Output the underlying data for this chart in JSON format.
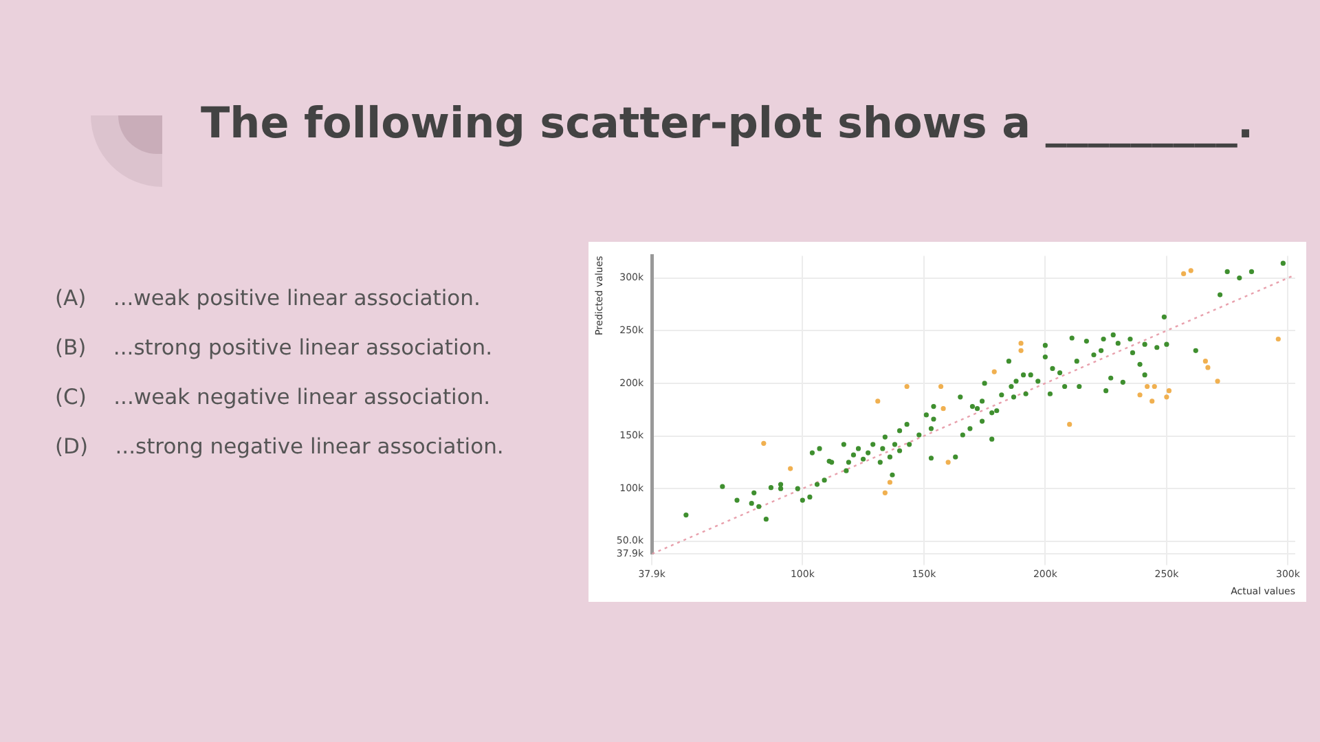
{
  "chart_data": {
    "type": "scatter",
    "title": "The following scatter-plot shows a _________.",
    "annotations": [
      "(A)    ...weak positive linear association.",
      "(B)    ...strong positive linear association.",
      "(C)    ...weak negative linear association.",
      "(D)    ...strong negative linear association."
    ],
    "xlabel": "Actual values",
    "ylabel": "Predicted values",
    "xlim": [
      37.9,
      303
    ],
    "ylim": [
      37.9,
      321
    ],
    "xticks": [
      {
        "value": 37.9,
        "label": "37.9k"
      },
      {
        "value": 100,
        "label": "100k"
      },
      {
        "value": 150,
        "label": "150k"
      },
      {
        "value": 200,
        "label": "200k"
      },
      {
        "value": 250,
        "label": "250k"
      },
      {
        "value": 300,
        "label": "300k"
      }
    ],
    "yticks": [
      {
        "value": 37.9,
        "label": "37.9k"
      },
      {
        "value": 50,
        "label": "50.0k"
      },
      {
        "value": 100,
        "label": "100k"
      },
      {
        "value": 150,
        "label": "150k"
      },
      {
        "value": 200,
        "label": "200k"
      },
      {
        "value": 250,
        "label": "250k"
      },
      {
        "value": 300,
        "label": "300k"
      }
    ],
    "grid": true,
    "legend": false,
    "marker": "circle",
    "series": [
      {
        "type": "line",
        "color": "#e8a0ac",
        "line_style": "dotted",
        "marker": "none",
        "x": [
          38,
          303
        ],
        "values": [
          38,
          303
        ]
      },
      {
        "color": "#3f8f2f",
        "x": [
          52,
          67,
          73,
          80,
          79,
          82,
          85,
          87,
          91,
          91,
          98,
          100,
          103,
          104,
          107,
          106,
          109,
          111,
          112,
          117,
          118,
          119,
          121,
          123,
          125,
          127,
          129,
          132,
          133,
          134,
          137,
          136,
          138,
          140,
          140,
          143,
          144,
          148,
          151,
          153,
          154,
          154,
          153,
          163,
          165,
          166,
          169,
          170,
          172,
          174,
          174,
          175,
          178,
          178,
          180,
          182,
          185,
          186,
          187,
          188,
          191,
          192,
          194,
          197,
          200,
          200,
          202,
          203,
          206,
          208,
          211,
          213,
          214,
          217,
          220,
          223,
          224,
          225,
          227,
          228,
          230,
          232,
          235,
          236,
          239,
          241,
          241,
          246,
          249,
          250,
          262,
          272,
          275,
          280,
          285,
          298
        ],
        "values": [
          75,
          102,
          89,
          96,
          86,
          83,
          71,
          101,
          104,
          100,
          100,
          89,
          92,
          134,
          138,
          104,
          108,
          126,
          125,
          142,
          117,
          125,
          132,
          138,
          128,
          134,
          142,
          125,
          138,
          149,
          113,
          130,
          142,
          155,
          136,
          161,
          142,
          151,
          170,
          157,
          178,
          166,
          129,
          130,
          187,
          151,
          157,
          178,
          176,
          183,
          164,
          200,
          147,
          172,
          174,
          189,
          221,
          197,
          187,
          202,
          208,
          190,
          208,
          202,
          236,
          225,
          190,
          214,
          210,
          197,
          243,
          221,
          197,
          240,
          227,
          231,
          242,
          193,
          205,
          246,
          238,
          201,
          242,
          229,
          218,
          237,
          208,
          234,
          263,
          237,
          231,
          284,
          306,
          300,
          306,
          314
        ]
      },
      {
        "color": "#f0b050",
        "x": [
          84,
          95,
          131,
          134,
          136,
          143,
          157,
          158,
          160,
          179,
          190,
          190,
          210,
          239,
          242,
          244,
          245,
          250,
          251,
          257,
          260,
          266,
          267,
          271,
          296
        ],
        "values": [
          143,
          119,
          183,
          96,
          106,
          197,
          197,
          176,
          125,
          211,
          238,
          231,
          161,
          189,
          197,
          183,
          197,
          187,
          193,
          304,
          307,
          221,
          215,
          202,
          242
        ]
      }
    ]
  }
}
